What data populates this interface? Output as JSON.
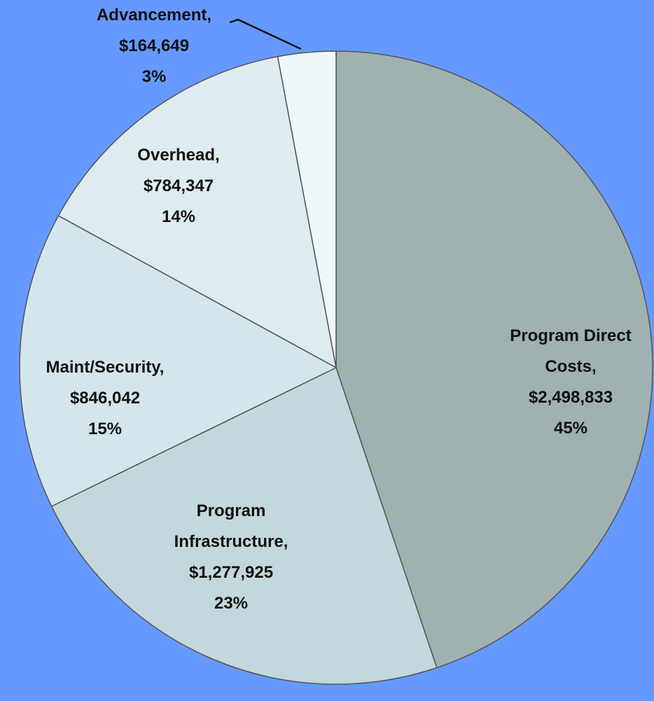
{
  "chart_data": {
    "type": "pie",
    "categories": [
      "Program Direct Costs,",
      "Program Infrastructure,",
      "Maint/Security,",
      "Overhead,",
      "Advancement,"
    ],
    "values": [
      2498833,
      1277925,
      846042,
      784347,
      164649
    ],
    "value_labels": [
      "$2,498,833",
      "$1,277,925",
      "$846,042",
      "$784,347",
      "$164,649"
    ],
    "percentages": [
      45,
      23,
      15,
      14,
      3
    ],
    "percentage_labels": [
      "45%",
      "23%",
      "15%",
      "14%",
      "3%"
    ],
    "colors": [
      "#9fb1b1",
      "#c3d8dc",
      "#d4e6ec",
      "#deecef",
      "#eef7fa"
    ]
  }
}
